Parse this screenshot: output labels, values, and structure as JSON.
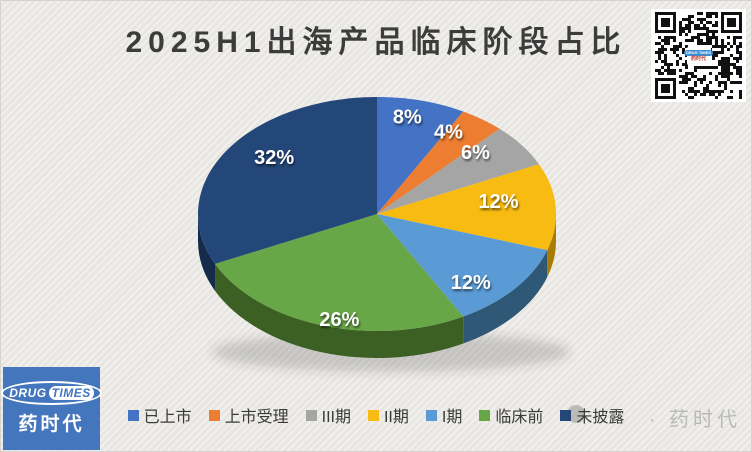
{
  "title": "2025H1出海产品临床阶段占比",
  "chart_data": {
    "type": "pie",
    "style": "3d",
    "title": "2025H1出海产品临床阶段占比",
    "legend_position": "bottom",
    "data_label_format": "percent",
    "series": [
      {
        "label": "已上市",
        "value": 8,
        "percent_label": "8%",
        "color": "#4472C4",
        "side_color": "#2A4D8F"
      },
      {
        "label": "上市受理",
        "value": 4,
        "percent_label": "4%",
        "color": "#ED7D31",
        "side_color": "#B05A1D"
      },
      {
        "label": "III期",
        "value": 6,
        "percent_label": "6%",
        "color": "#A5A5A5",
        "side_color": "#757575"
      },
      {
        "label": "II期",
        "value": 12,
        "percent_label": "12%",
        "color": "#F7BB11",
        "side_color": "#A87C00"
      },
      {
        "label": "I期",
        "value": 12,
        "percent_label": "12%",
        "color": "#5B9BD5",
        "side_color": "#2F5876"
      },
      {
        "label": "临床前",
        "value": 26,
        "percent_label": "26%",
        "color": "#68A748",
        "side_color": "#3C6023"
      },
      {
        "label": "未披露",
        "value": 32,
        "percent_label": "32%",
        "color": "#24477A",
        "side_color": "#152B4A"
      }
    ]
  },
  "branding": {
    "logo": {
      "word1": "DRUG",
      "word2": "TIMES",
      "chinese": "药时代"
    },
    "qr_center": {
      "line1": "DRUG TIMES",
      "line2": "药时代"
    }
  },
  "watermark": {
    "text": "· 药时代"
  }
}
